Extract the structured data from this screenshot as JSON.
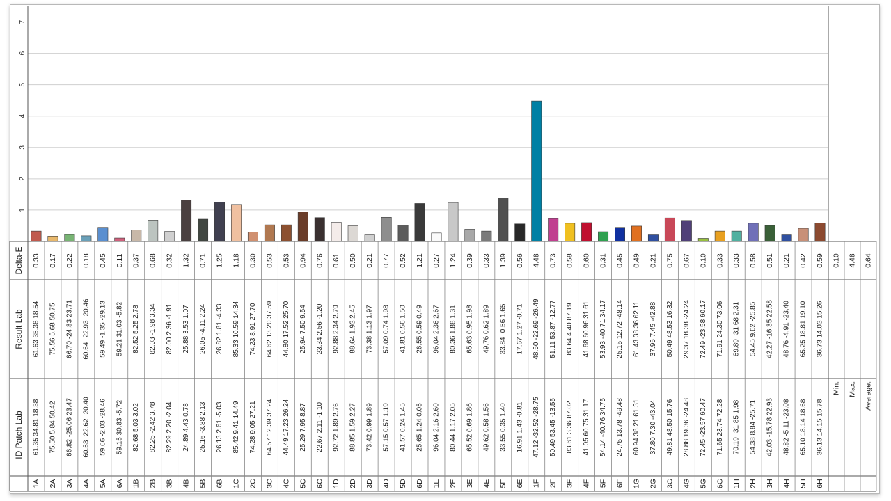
{
  "chart_data": {
    "type": "bar",
    "ylabel": "",
    "ylim": [
      0,
      7.5
    ],
    "yticks": [
      "1",
      "2",
      "3",
      "4",
      "5",
      "6",
      "7"
    ],
    "row_labels": {
      "delta": "Delta-E",
      "result": "Result Lab",
      "patch": "Patch Lab",
      "id": "ID"
    },
    "summary_labels": [
      "Min:",
      "Max:",
      "Average:"
    ],
    "summary_values": [
      "0.10",
      "4.48",
      "0.64"
    ],
    "categories": [
      "1A",
      "2A",
      "3A",
      "4A",
      "5A",
      "6A",
      "1B",
      "2B",
      "3B",
      "4B",
      "5B",
      "6B",
      "1C",
      "2C",
      "3C",
      "4C",
      "5C",
      "6C",
      "1D",
      "2D",
      "3D",
      "4D",
      "5D",
      "6D",
      "1E",
      "2E",
      "3E",
      "4E",
      "5E",
      "6E",
      "1F",
      "2F",
      "3F",
      "4F",
      "5F",
      "6F",
      "1G",
      "2G",
      "3G",
      "4G",
      "5G",
      "6G",
      "1H",
      "2H",
      "3H",
      "4H",
      "5H",
      "6H"
    ],
    "values": [
      0.33,
      0.17,
      0.22,
      0.18,
      0.45,
      0.11,
      0.37,
      0.68,
      0.32,
      1.32,
      0.71,
      1.25,
      1.18,
      0.3,
      0.53,
      0.53,
      0.94,
      0.76,
      0.61,
      0.5,
      0.21,
      0.77,
      0.52,
      1.21,
      0.27,
      1.24,
      0.39,
      0.33,
      1.39,
      0.56,
      4.48,
      0.73,
      0.58,
      0.6,
      0.31,
      0.45,
      0.49,
      0.21,
      0.75,
      0.67,
      0.1,
      0.33,
      0.33,
      0.58,
      0.51,
      0.21,
      0.42,
      0.59
    ],
    "delta_labels": [
      "0.33",
      "0.17",
      "0.22",
      "0.18",
      "0.45",
      "0.11",
      "0.37",
      "0.68",
      "0.32",
      "1.32",
      "0.71",
      "1.25",
      "1.18",
      "0.30",
      "0.53",
      "0.53",
      "0.94",
      "0.76",
      "0.61",
      "0.50",
      "0.21",
      "0.77",
      "0.52",
      "1.21",
      "0.27",
      "1.24",
      "0.39",
      "0.33",
      "1.39",
      "0.56",
      "4.48",
      "0.73",
      "0.58",
      "0.60",
      "0.31",
      "0.45",
      "0.49",
      "0.21",
      "0.75",
      "0.67",
      "0.10",
      "0.33",
      "0.33",
      "0.58",
      "0.51",
      "0.21",
      "0.42",
      "0.59"
    ],
    "result_lab": [
      "61.63 35.38 18.54",
      "75.56 5.68 50.75",
      "66.70 -24.83 23.71",
      "60.64 -22.93 -20.46",
      "59.49 -1.35 -29.13",
      "59.21 31.03 -5.82",
      "82.52 5.25 2.78",
      "82.03 -1.98 3.34",
      "82.00 2.36 -1.91",
      "25.88 3.53 1.07",
      "26.05 -4.11 2.24",
      "26.82 1.81 -4.33",
      "85.33 10.59 14.34",
      "74.23 8.91 27.70",
      "64.62 13.20 37.59",
      "44.80 17.52 25.70",
      "25.94 7.50 9.54",
      "23.34 2.56 -1.20",
      "92.88 2.34 2.79",
      "88.64 1.93 2.45",
      "73.38 1.13 1.97",
      "57.09 0.74 1.98",
      "41.81 0.56 1.50",
      "26.55 0.59 0.49",
      "96.04 2.36 2.67",
      "80.36 1.88 1.31",
      "65.63 0.95 1.98",
      "49.76 0.62 1.89",
      "33.84 -0.56 1.65",
      "17.67 1.27 -0.71",
      "48.50 -22.69 -26.49",
      "51.11 53.87 -12.77",
      "83.64 4.40 87.19",
      "41.68 60.96 31.61",
      "53.93 -40.71 34.17",
      "25.15 12.72 -48.14",
      "61.43 38.36 62.11",
      "37.95 7.45 -42.88",
      "50.49 48.53 16.32",
      "29.37 18.38 -24.24",
      "72.49 -23.58 60.17",
      "71.91 24.30 73.06",
      "69.89 -31.68 2.31",
      "54.45 9.62 -25.85",
      "42.27 -16.35 22.58",
      "48.76 -4.91 -23.40",
      "65.25 18.81 19.10",
      "36.73 14.03 15.26"
    ],
    "patch_lab": [
      "61.35 34.81 18.38",
      "75.50 5.84 50.42",
      "66.82 -25.06 23.47",
      "60.53 -22.62 -20.40",
      "59.66 -2.03 -28.46",
      "59.15 30.83 -5.72",
      "82.68 5.03 3.02",
      "82.25 -2.42 3.78",
      "82.29 2.20 -2.04",
      "24.89 4.43 0.78",
      "25.16 -3.88 2.13",
      "26.13 2.61 -5.03",
      "85.42 9.41 14.49",
      "74.28 9.05 27.21",
      "64.57 12.39 37.24",
      "44.49 17.23 26.24",
      "25.29 7.95 8.87",
      "22.67 2.11 -1.10",
      "92.72 1.89 2.76",
      "88.85 1.59 2.27",
      "73.42 0.99 1.89",
      "57.15 0.57 1.19",
      "41.57 0.24 1.45",
      "25.65 1.24 0.05",
      "96.04 2.16 2.60",
      "80.44 1.17 2.05",
      "65.52 0.69 1.86",
      "49.62 0.58 1.56",
      "33.55 0.35 1.40",
      "16.91 1.43 -0.81",
      "47.12 -32.52 -28.75",
      "50.49 53.45 -13.55",
      "83.61 3.36 87.02",
      "41.05 60.75 31.17",
      "54.14 -40.76 34.75",
      "24.75 13.78 -49.48",
      "60.94 38.21 61.31",
      "37.80 7.30 -43.04",
      "49.81 48.50 15.76",
      "28.88 19.36 -24.48",
      "72.45 -23.57 60.47",
      "71.65 23.74 72.28",
      "70.19 -31.85 1.98",
      "54.38 8.84 -25.71",
      "42.03 -15.78 22.93",
      "48.82 -5.11 -23.08",
      "65.10 18.14 18.68",
      "36.13 14.15 15.78"
    ],
    "colors": [
      "#c05a4e",
      "#e8b86c",
      "#78b474",
      "#6aa0b8",
      "#5a8fd0",
      "#d0607c",
      "#c8b8a8",
      "#bcc4c0",
      "#d0d0d0",
      "#4a4040",
      "#404640",
      "#404050",
      "#f0c0a0",
      "#d09070",
      "#b07850",
      "#8c5030",
      "#6a3c28",
      "#3a3030",
      "#f4ecea",
      "#dcd8d4",
      "#d0d0d0",
      "#8e8e8e",
      "#5c5c5c",
      "#3a3a3a",
      "#fafafa",
      "#c8c8c8",
      "#a8a8a8",
      "#7a7a7a",
      "#505050",
      "#282828",
      "#0080a4",
      "#c04090",
      "#f0c020",
      "#c01030",
      "#30a050",
      "#1030a0",
      "#e07020",
      "#3050a0",
      "#c84858",
      "#504078",
      "#98c040",
      "#e8a020",
      "#50b0a0",
      "#7070b8",
      "#3a6038",
      "#3050a0",
      "#c89078",
      "#8c4a30"
    ]
  }
}
